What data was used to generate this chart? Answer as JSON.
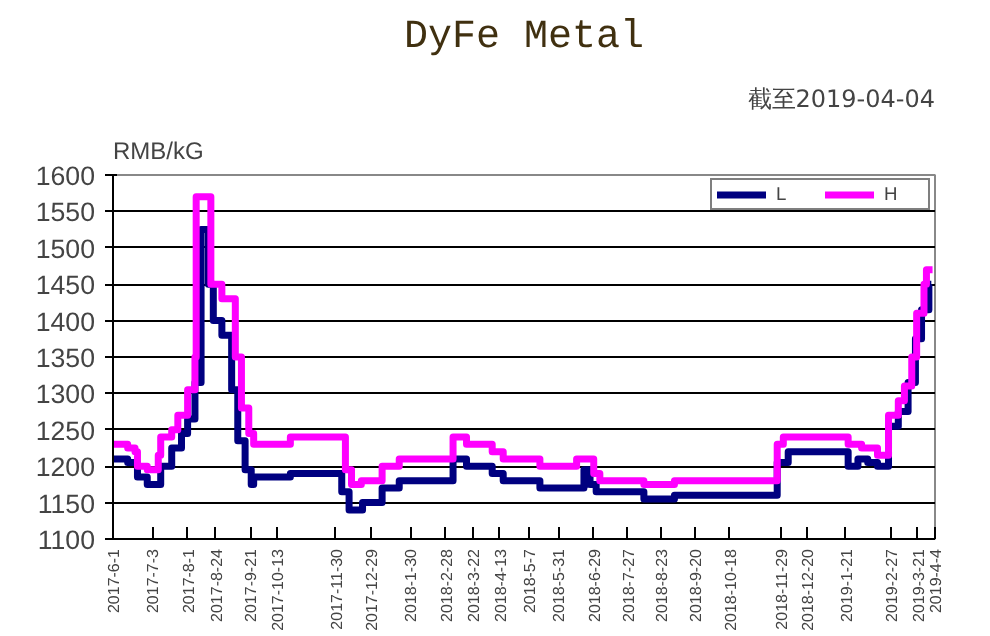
{
  "chart_data": {
    "type": "step",
    "title": "DyFe Metal",
    "subtitle": "截至2019-04-04",
    "ylabel": "RMB/kG",
    "ylim": [
      1100,
      1600
    ],
    "yticks": [
      1100,
      1150,
      1200,
      1250,
      1300,
      1350,
      1400,
      1450,
      1500,
      1550,
      1600
    ],
    "xlim": [
      "2017-06-01",
      "2019-04-04"
    ],
    "xticks": [
      {
        "value": "2017-06-01",
        "label": "2017-6-1"
      },
      {
        "value": "2017-07-03",
        "label": "2017-7-3"
      },
      {
        "value": "2017-08-01",
        "label": "2017-8-1"
      },
      {
        "value": "2017-08-24",
        "label": "2017-8-24"
      },
      {
        "value": "2017-09-21",
        "label": "2017-9-21"
      },
      {
        "value": "2017-10-13",
        "label": "2017-10-13"
      },
      {
        "value": "2017-11-30",
        "label": "2017-11-30"
      },
      {
        "value": "2017-12-29",
        "label": "2017-12-29"
      },
      {
        "value": "2018-01-30",
        "label": "2018-1-30"
      },
      {
        "value": "2018-02-28",
        "label": "2018-2-28"
      },
      {
        "value": "2018-03-22",
        "label": "2018-3-22"
      },
      {
        "value": "2018-04-13",
        "label": "2018-4-13"
      },
      {
        "value": "2018-05-07",
        "label": "2018-5-7"
      },
      {
        "value": "2018-05-31",
        "label": "2018-5-31"
      },
      {
        "value": "2018-06-29",
        "label": "2018-6-29"
      },
      {
        "value": "2018-07-27",
        "label": "2018-7-27"
      },
      {
        "value": "2018-08-23",
        "label": "2018-8-23"
      },
      {
        "value": "2018-09-20",
        "label": "2018-9-20"
      },
      {
        "value": "2018-10-18",
        "label": "2018-10-18"
      },
      {
        "value": "2018-11-29",
        "label": "2018-11-29"
      },
      {
        "value": "2018-12-20",
        "label": "2018-12-20"
      },
      {
        "value": "2019-01-21",
        "label": "2019-1-21"
      },
      {
        "value": "2019-02-27",
        "label": "2019-2-27"
      },
      {
        "value": "2019-03-21",
        "label": "2019-3-21"
      },
      {
        "value": "2019-04-04",
        "label": "2019-4-4"
      }
    ],
    "grid": "y",
    "legend": "top right",
    "marker": "none",
    "line_style": "solid",
    "series": [
      {
        "name": "L",
        "color": "#000080",
        "x": [
          "2017-06-01",
          "2017-06-13",
          "2017-06-19",
          "2017-06-21",
          "2017-06-29",
          "2017-07-10",
          "2017-07-19",
          "2017-07-27",
          "2017-08-01",
          "2017-08-07",
          "2017-08-12",
          "2017-08-18",
          "2017-08-22",
          "2017-08-29",
          "2017-09-03",
          "2017-09-06",
          "2017-09-11",
          "2017-09-17",
          "2017-09-22",
          "2017-09-24",
          "2017-10-22",
          "2017-10-24",
          "2017-12-02",
          "2017-12-05",
          "2017-12-11",
          "2017-12-22",
          "2018-01-04",
          "2018-01-07",
          "2018-01-21",
          "2018-02-25",
          "2018-03-06",
          "2018-03-14",
          "2018-03-17",
          "2018-03-30",
          "2018-04-07",
          "2018-04-16",
          "2018-05-13",
          "2018-05-16",
          "2018-06-12",
          "2018-06-21",
          "2018-06-26",
          "2018-07-01",
          "2018-08-06",
          "2018-08-09",
          "2018-08-31",
          "2018-09-03",
          "2018-11-18",
          "2018-11-26",
          "2018-12-05",
          "2019-01-20",
          "2019-01-23",
          "2019-01-31",
          "2019-02-08",
          "2019-02-16",
          "2019-02-25",
          "2019-03-05",
          "2019-03-13",
          "2019-03-19",
          "2019-03-24",
          "2019-03-30",
          "2019-04-01"
        ],
        "values": [
          1210,
          1205,
          1205,
          1185,
          1175,
          1200,
          1225,
          1245,
          1265,
          1315,
          1525,
          1450,
          1400,
          1380,
          1380,
          1305,
          1235,
          1195,
          1175,
          1185,
          1185,
          1190,
          1190,
          1165,
          1140,
          1150,
          1150,
          1170,
          1180,
          1180,
          1210,
          1210,
          1200,
          1200,
          1190,
          1180,
          1180,
          1170,
          1170,
          1195,
          1175,
          1165,
          1165,
          1155,
          1155,
          1160,
          1160,
          1205,
          1220,
          1220,
          1200,
          1210,
          1205,
          1200,
          1255,
          1275,
          1315,
          1375,
          1415,
          1450,
          1450
        ]
      },
      {
        "name": "H",
        "color": "#ff00ff",
        "x": [
          "2017-06-01",
          "2017-06-13",
          "2017-06-19",
          "2017-06-21",
          "2017-06-29",
          "2017-07-08",
          "2017-07-10",
          "2017-07-19",
          "2017-07-24",
          "2017-08-01",
          "2017-08-07",
          "2017-08-08",
          "2017-08-15",
          "2017-08-20",
          "2017-08-29",
          "2017-09-06",
          "2017-09-09",
          "2017-09-14",
          "2017-09-20",
          "2017-09-24",
          "2017-10-22",
          "2017-10-24",
          "2017-12-02",
          "2017-12-08",
          "2017-12-13",
          "2017-12-21",
          "2018-01-04",
          "2018-01-07",
          "2018-01-21",
          "2018-02-25",
          "2018-03-06",
          "2018-03-14",
          "2018-03-17",
          "2018-03-30",
          "2018-04-07",
          "2018-04-16",
          "2018-05-13",
          "2018-05-16",
          "2018-06-12",
          "2018-06-15",
          "2018-06-23",
          "2018-06-29",
          "2018-07-04",
          "2018-08-06",
          "2018-08-09",
          "2018-08-31",
          "2018-09-03",
          "2018-11-18",
          "2018-11-26",
          "2018-12-01",
          "2019-01-20",
          "2019-01-23",
          "2019-01-31",
          "2019-02-03",
          "2019-02-16",
          "2019-02-25",
          "2019-03-05",
          "2019-03-10",
          "2019-03-16",
          "2019-03-20",
          "2019-03-26",
          "2019-03-28",
          "2019-04-02"
        ],
        "values": [
          1230,
          1225,
          1220,
          1200,
          1195,
          1215,
          1240,
          1250,
          1270,
          1305,
          1350,
          1570,
          1570,
          1450,
          1430,
          1430,
          1350,
          1280,
          1245,
          1230,
          1230,
          1240,
          1240,
          1195,
          1175,
          1180,
          1180,
          1200,
          1210,
          1210,
          1240,
          1240,
          1230,
          1230,
          1220,
          1210,
          1210,
          1200,
          1200,
          1210,
          1210,
          1190,
          1180,
          1180,
          1175,
          1175,
          1180,
          1180,
          1230,
          1240,
          1240,
          1230,
          1230,
          1225,
          1215,
          1270,
          1290,
          1310,
          1350,
          1410,
          1450,
          1470,
          1470
        ]
      }
    ]
  }
}
